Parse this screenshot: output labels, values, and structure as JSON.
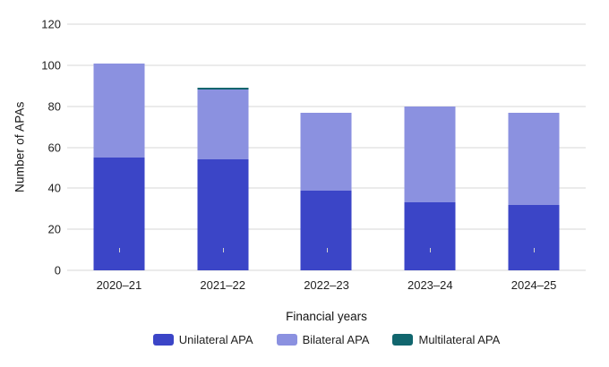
{
  "chart_data": {
    "type": "bar",
    "stacked": true,
    "title": "",
    "xlabel": "Financial years",
    "ylabel": "Number of APAs",
    "categories": [
      "2020–21",
      "2021–22",
      "2022–23",
      "2023–24",
      "2024–25"
    ],
    "series": [
      {
        "name": "Unilateral APA",
        "color": "#3b45c7",
        "values": [
          55,
          54,
          39,
          33,
          32
        ]
      },
      {
        "name": "Bilateral APA",
        "color": "#8b91e0",
        "values": [
          46,
          34,
          38,
          47,
          45
        ]
      },
      {
        "name": "Multilateral APA",
        "color": "#11666e",
        "values": [
          0,
          1,
          0,
          0,
          0
        ]
      }
    ],
    "ylim": [
      0,
      120
    ],
    "yticks": [
      0,
      20,
      40,
      60,
      80,
      100,
      120
    ],
    "grid": true,
    "legend_position": "bottom"
  },
  "colors": {
    "background": "#ffffff",
    "gridline": "#ebebeb",
    "text": "#1f1f1f"
  }
}
